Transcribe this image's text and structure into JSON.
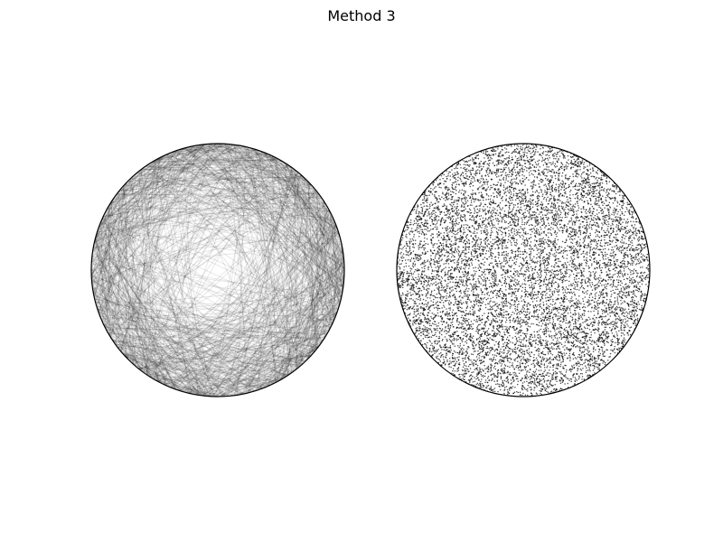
{
  "figure": {
    "title": "Method 3"
  },
  "chart_data": [
    {
      "type": "line",
      "description_kind": "random-chords",
      "chord_count": 1000,
      "circle_radius": 1,
      "axis_visible": false,
      "grid": false,
      "line_color": "#000000",
      "line_opacity": 0.1
    },
    {
      "type": "scatter",
      "description_kind": "chord-midpoints",
      "point_count": 10000,
      "circle_radius": 1,
      "axis_visible": false,
      "grid": false,
      "point_color": "#000000",
      "point_opacity": 0.7
    }
  ]
}
